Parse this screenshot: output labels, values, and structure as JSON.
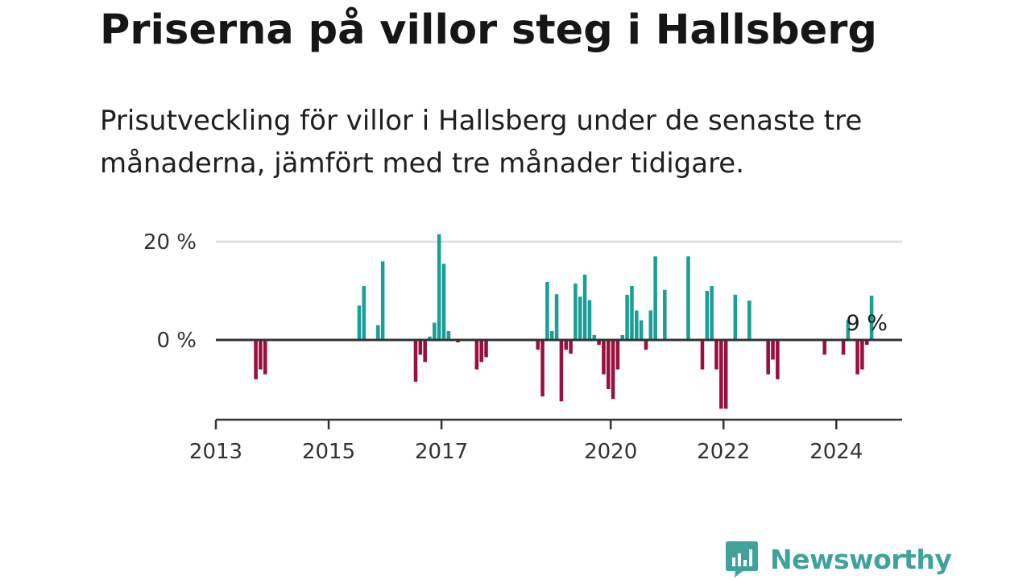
{
  "title": "Priserna på villor steg i Hallsberg",
  "subtitle": "Prisutveckling för villor i Hallsberg under de senaste tre månaderna, jämfört med tre månader tidigare.",
  "brand": {
    "name": "Newsworthy",
    "color": "#3fa39c"
  },
  "colors": {
    "positive": "#1a9f96",
    "negative": "#990f3d",
    "zero_line": "#333333",
    "grid": "#dddddd",
    "axis": "#333333"
  },
  "chart_data": {
    "type": "bar",
    "x_unit": "date",
    "xlim": [
      "2013-01",
      "2025-03"
    ],
    "ylim": [
      -16,
      20
    ],
    "y_ticks": [
      {
        "value": 20,
        "label": "20 %"
      },
      {
        "value": 0,
        "label": "0 %"
      }
    ],
    "x_ticks": [
      {
        "value": "2013-01",
        "label": "2013"
      },
      {
        "value": "2015-01",
        "label": "2015"
      },
      {
        "value": "2017-01",
        "label": "2017"
      },
      {
        "value": "2020-01",
        "label": "2020"
      },
      {
        "value": "2022-01",
        "label": "2022"
      },
      {
        "value": "2024-01",
        "label": "2024"
      }
    ],
    "grid": true,
    "annotation": {
      "date": "2024-07",
      "text": "9 %"
    },
    "points": [
      {
        "date": "2013-09",
        "value": -8
      },
      {
        "date": "2013-10",
        "value": -6
      },
      {
        "date": "2013-11",
        "value": -7
      },
      {
        "date": "2015-07",
        "value": 7
      },
      {
        "date": "2015-08",
        "value": 11
      },
      {
        "date": "2015-11",
        "value": 3
      },
      {
        "date": "2015-12",
        "value": 16
      },
      {
        "date": "2016-07",
        "value": -8.5
      },
      {
        "date": "2016-08",
        "value": -3
      },
      {
        "date": "2016-09",
        "value": -4.5
      },
      {
        "date": "2016-10",
        "value": 0.7
      },
      {
        "date": "2016-11",
        "value": 3.5
      },
      {
        "date": "2016-12",
        "value": 21.5
      },
      {
        "date": "2017-01",
        "value": 15.5
      },
      {
        "date": "2017-02",
        "value": 1.8
      },
      {
        "date": "2017-04",
        "value": -0.5
      },
      {
        "date": "2017-08",
        "value": -6
      },
      {
        "date": "2017-09",
        "value": -4.5
      },
      {
        "date": "2017-10",
        "value": -3.5
      },
      {
        "date": "2018-09",
        "value": -2
      },
      {
        "date": "2018-10",
        "value": -11.5
      },
      {
        "date": "2018-11",
        "value": 11.8
      },
      {
        "date": "2018-12",
        "value": 1.8
      },
      {
        "date": "2019-01",
        "value": 9.3
      },
      {
        "date": "2019-02",
        "value": -12.5
      },
      {
        "date": "2019-03",
        "value": -2
      },
      {
        "date": "2019-04",
        "value": -2.8
      },
      {
        "date": "2019-05",
        "value": 11.5
      },
      {
        "date": "2019-06",
        "value": 8.8
      },
      {
        "date": "2019-07",
        "value": 13.3
      },
      {
        "date": "2019-08",
        "value": 8.1
      },
      {
        "date": "2019-09",
        "value": 1
      },
      {
        "date": "2019-10",
        "value": -1
      },
      {
        "date": "2019-11",
        "value": -7
      },
      {
        "date": "2019-12",
        "value": -10
      },
      {
        "date": "2020-01",
        "value": -12
      },
      {
        "date": "2020-02",
        "value": -6
      },
      {
        "date": "2020-03",
        "value": 1
      },
      {
        "date": "2020-04",
        "value": 9.2
      },
      {
        "date": "2020-05",
        "value": 11
      },
      {
        "date": "2020-06",
        "value": 6
      },
      {
        "date": "2020-07",
        "value": 4
      },
      {
        "date": "2020-08",
        "value": -2
      },
      {
        "date": "2020-09",
        "value": 6
      },
      {
        "date": "2020-10",
        "value": 17
      },
      {
        "date": "2020-12",
        "value": 10.2
      },
      {
        "date": "2021-05",
        "value": 17
      },
      {
        "date": "2021-08",
        "value": -6
      },
      {
        "date": "2021-09",
        "value": 10
      },
      {
        "date": "2021-10",
        "value": 11
      },
      {
        "date": "2021-11",
        "value": -6
      },
      {
        "date": "2021-12",
        "value": -14
      },
      {
        "date": "2022-01",
        "value": -14
      },
      {
        "date": "2022-03",
        "value": 9.2
      },
      {
        "date": "2022-06",
        "value": 8
      },
      {
        "date": "2022-10",
        "value": -7
      },
      {
        "date": "2022-11",
        "value": -4
      },
      {
        "date": "2022-12",
        "value": -8
      },
      {
        "date": "2023-10",
        "value": -3
      },
      {
        "date": "2024-02",
        "value": -3
      },
      {
        "date": "2024-03",
        "value": 4
      },
      {
        "date": "2024-05",
        "value": -7
      },
      {
        "date": "2024-06",
        "value": -6
      },
      {
        "date": "2024-07",
        "value": -1
      },
      {
        "date": "2024-08",
        "value": 9
      }
    ]
  }
}
